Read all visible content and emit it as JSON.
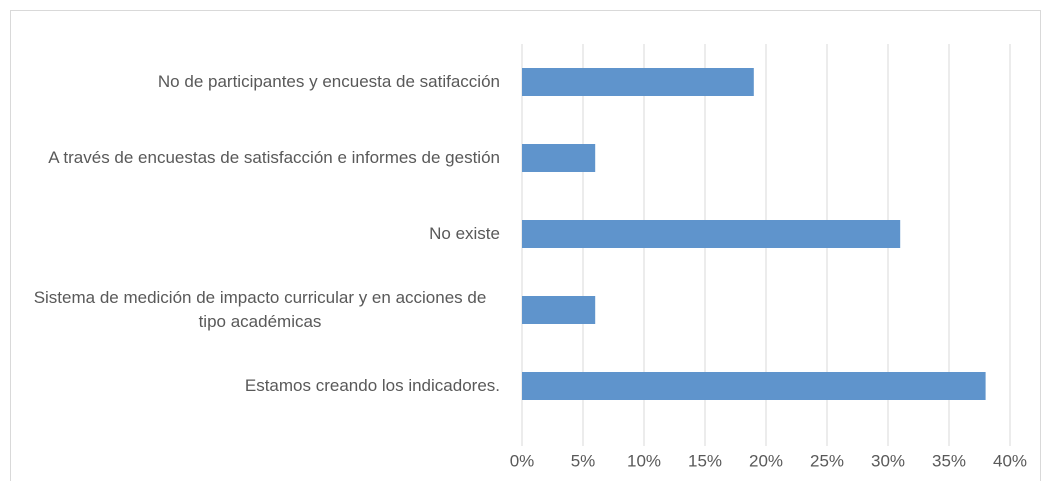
{
  "chart_data": {
    "type": "bar",
    "orientation": "horizontal",
    "categories": [
      "No de participantes y encuesta de satifacción",
      "A través de encuestas de satisfacción e informes de gestión",
      "No existe",
      "Sistema de medición de impacto curricular y en acciones de tipo académicas",
      "Estamos creando los indicadores."
    ],
    "values": [
      19,
      6,
      31,
      6,
      38
    ],
    "color": "#5f94cc",
    "xlim": [
      0,
      40
    ],
    "xticks": [
      {
        "value": 0,
        "label": "0%"
      },
      {
        "value": 5,
        "label": "5%"
      },
      {
        "value": 10,
        "label": "10%"
      },
      {
        "value": 15,
        "label": "15%"
      },
      {
        "value": 20,
        "label": "20%"
      },
      {
        "value": 25,
        "label": "25%"
      },
      {
        "value": 30,
        "label": "30%"
      },
      {
        "value": 35,
        "label": "35%"
      },
      {
        "value": 40,
        "label": "40%"
      }
    ],
    "grid": true
  }
}
